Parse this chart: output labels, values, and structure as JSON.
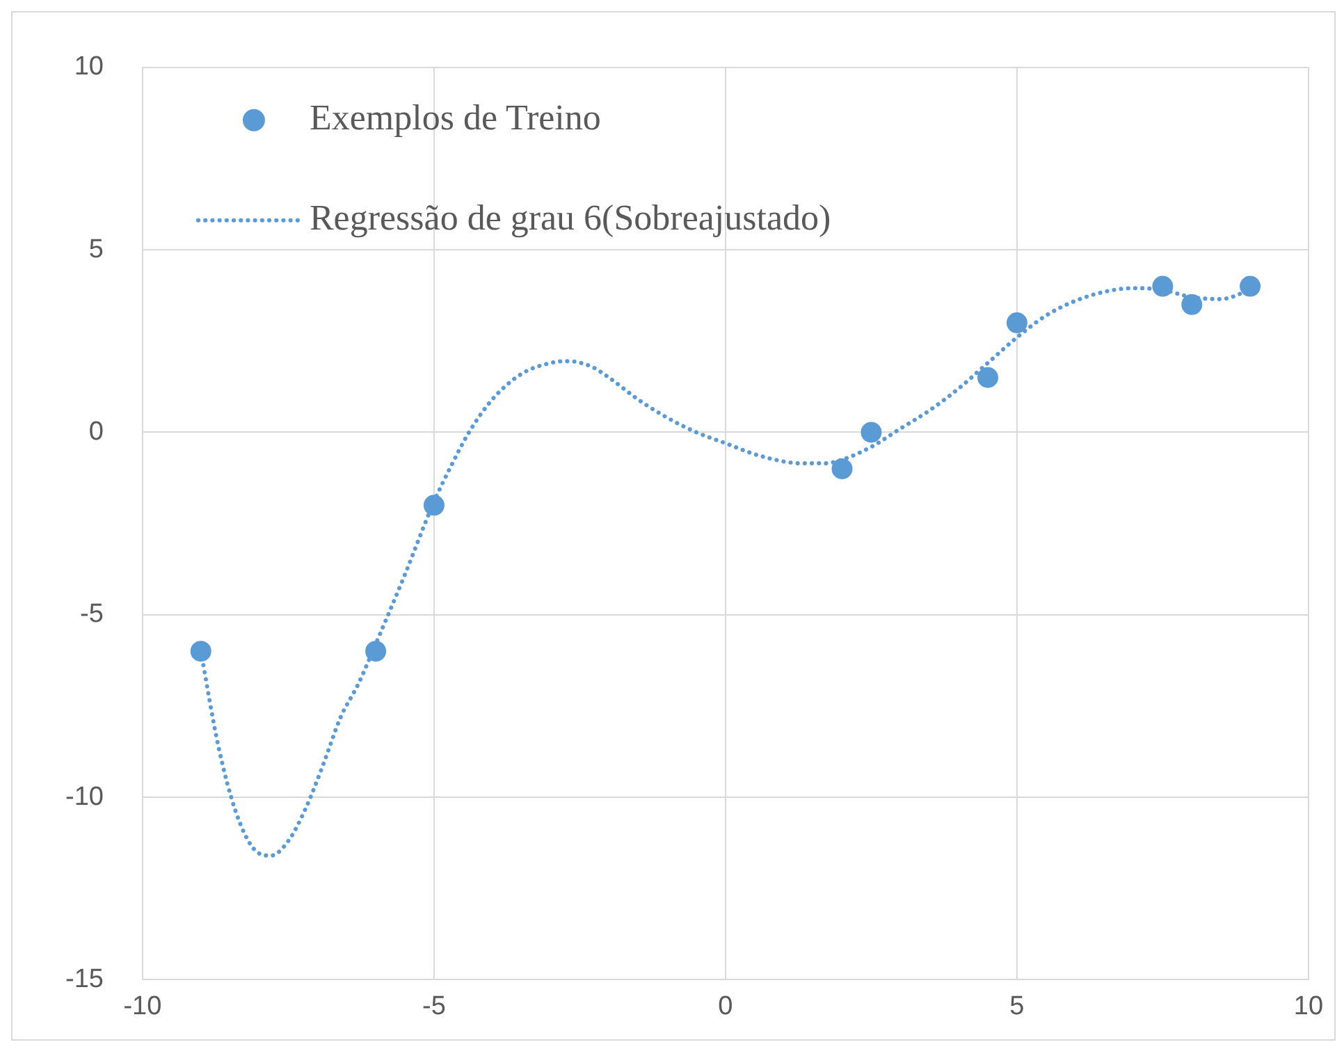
{
  "chart_data": {
    "type": "scatter",
    "xlim": [
      -10,
      10
    ],
    "xticks": [
      -10,
      -5,
      0,
      5,
      10
    ],
    "ylim": [
      -15,
      10
    ],
    "yticks": [
      -15,
      -10,
      -5,
      0,
      5,
      10
    ],
    "grid": true,
    "legend": "top left",
    "series": [
      {
        "name": "Exemplos de Treino",
        "type": "scatter",
        "color": "#5b9bd5",
        "marker": "circle",
        "x": [
          -9,
          -6,
          -5,
          2,
          2.5,
          4.5,
          5,
          7.5,
          8,
          9
        ],
        "values": [
          -6,
          -6,
          -2,
          -1,
          0,
          1.5,
          3,
          4,
          3.5,
          4
        ]
      },
      {
        "name": "Regressão de grau 6(Sobreajustado)",
        "type": "line",
        "color": "#5b9bd5",
        "marker": "none",
        "line_style": "dotted",
        "x": [
          -9,
          -8.7,
          -8.4,
          -8.1,
          -7.8,
          -7.5,
          -7.2,
          -6.9,
          -6.6,
          -6.3,
          -6,
          -5.5,
          -5,
          -4.7,
          -4.4,
          -4,
          -3.5,
          -3,
          -2.7,
          -2.3,
          -2,
          -1.5,
          -1,
          -0.5,
          0,
          0.5,
          1,
          1.3,
          1.7,
          2,
          2.5,
          3,
          3.5,
          4,
          4.5,
          5,
          5.5,
          6,
          6.5,
          7,
          7.5,
          8,
          8.5,
          9
        ],
        "values": [
          -6,
          -8.6,
          -10.4,
          -11.4,
          -11.6,
          -11.2,
          -10.3,
          -9.1,
          -7.8,
          -6.9,
          -5.8,
          -3.9,
          -1.9,
          -0.9,
          0,
          0.9,
          1.6,
          1.9,
          1.95,
          1.8,
          1.5,
          0.9,
          0.4,
          0,
          -0.3,
          -0.6,
          -0.8,
          -0.85,
          -0.85,
          -0.75,
          -0.4,
          0.1,
          0.6,
          1.2,
          1.9,
          2.6,
          3.2,
          3.6,
          3.85,
          3.95,
          3.9,
          3.7,
          3.65,
          3.9
        ]
      }
    ]
  }
}
